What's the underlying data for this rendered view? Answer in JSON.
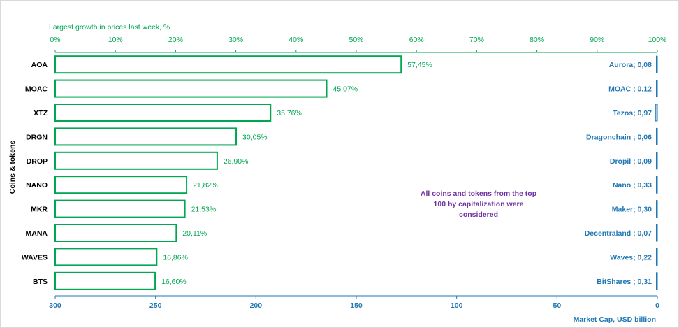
{
  "chart_data": {
    "type": "bar",
    "orientation": "horizontal",
    "categories": [
      "AOA",
      "MOAC",
      "XTZ",
      "DRGN",
      "DROP",
      "NANO",
      "MKR",
      "MANA",
      "WAVES",
      "BTS"
    ],
    "ylabel": "Coins & tokens",
    "series": [
      {
        "axis": "top",
        "values": [
          57.45,
          45.07,
          35.76,
          30.05,
          26.9,
          21.82,
          21.53,
          20.11,
          16.86,
          16.6
        ],
        "data_labels": [
          "57,45%",
          "45,07%",
          "35,76%",
          "30,05%",
          "26,90%",
          "21,82%",
          "21,53%",
          "20,11%",
          "16,86%",
          "16,60%"
        ],
        "color": "#00a651",
        "fill": "#ffffff"
      },
      {
        "axis": "bottom-reversed",
        "values": [
          0.08,
          0.12,
          0.97,
          0.06,
          0.09,
          0.33,
          0.3,
          0.07,
          0.22,
          0.31
        ],
        "data_labels": [
          "Aurora;  0,08",
          "MOAC ; 0,12",
          "Tezos; 0,97",
          "Dragonchain ; 0,06",
          "Dropil ; 0,09",
          "Nano ; 0,33",
          "Maker; 0,30",
          "Decentraland ; 0,07",
          "Waves; 0,22",
          "BitShares ; 0,31"
        ],
        "color": "#1f77b4",
        "fill": "#a6c8e8"
      }
    ],
    "top_axis": {
      "title": "Largest growth in prices  last week, %",
      "range": [
        0,
        100
      ],
      "ticks": [
        0,
        10,
        20,
        30,
        40,
        50,
        60,
        70,
        80,
        90,
        100
      ],
      "tick_labels": [
        "0%",
        "10%",
        "20%",
        "30%",
        "40%",
        "50%",
        "60%",
        "70%",
        "80%",
        "90%",
        "100%"
      ]
    },
    "bottom_axis": {
      "title": "Market Cap,   USD billion",
      "range": [
        300,
        0
      ],
      "ticks": [
        300,
        250,
        200,
        150,
        100,
        50,
        0
      ],
      "tick_labels": [
        "300",
        "250",
        "200",
        "150",
        "100",
        "50",
        "0"
      ]
    },
    "annotation": [
      "All coins and tokens from the top",
      "100 by capitalization were",
      "considered"
    ],
    "grid": false,
    "legend": "none",
    "colors": {
      "growth": "#00a651",
      "cap": "#1f77b4",
      "note": "#7030a0",
      "axis": "#1f77b4"
    }
  }
}
